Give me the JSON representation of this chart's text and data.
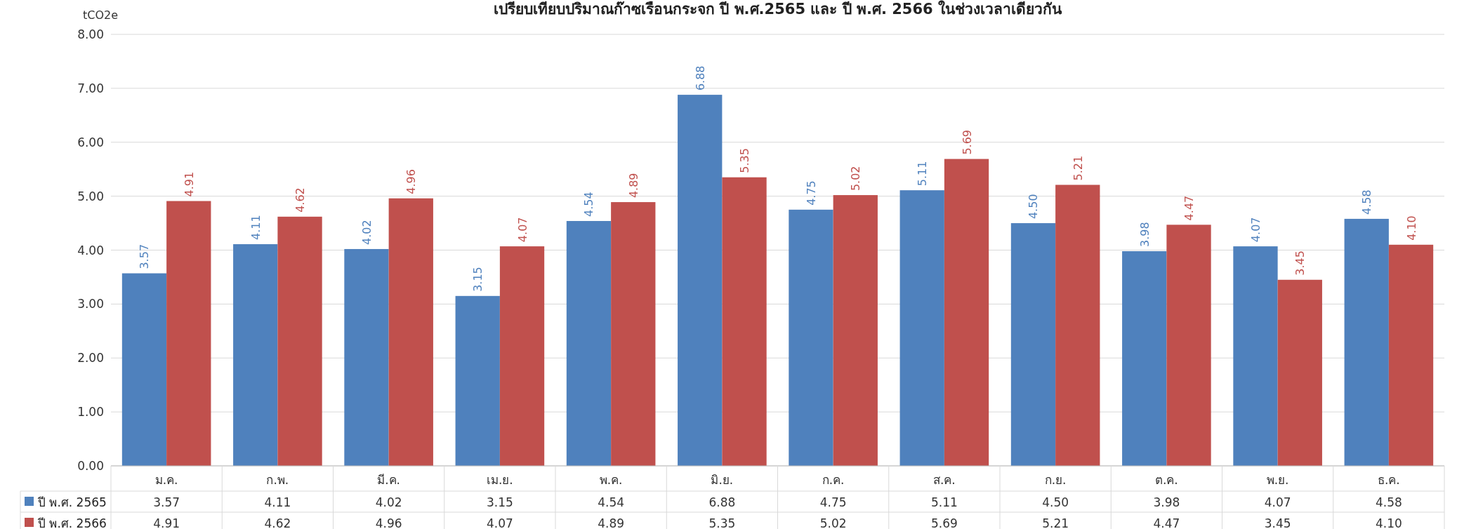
{
  "chart_data": {
    "type": "bar",
    "title": "เปรียบเทียบปริมาณก๊าซเรือนกระจก ปี พ.ศ.2565 และ ปี พ.ศ. 2566 ในช่วงเวลาเดียวกัน",
    "ylabel": "tCO2e",
    "categories": [
      "ม.ค.",
      "ก.พ.",
      "มี.ค.",
      "เม.ย.",
      "พ.ค.",
      "มิ.ย.",
      "ก.ค.",
      "ส.ค.",
      "ก.ย.",
      "ต.ค.",
      "พ.ย.",
      "ธ.ค."
    ],
    "series": [
      {
        "name": "ปี พ.ศ. 2565",
        "color": "#4f81bd",
        "values": [
          3.57,
          4.11,
          4.02,
          3.15,
          4.54,
          6.88,
          4.75,
          5.11,
          4.5,
          3.98,
          4.07,
          4.58
        ],
        "value_labels": [
          "3.57",
          "4.11",
          "4.02",
          "3.15",
          "4.54",
          "6.88",
          "4.75",
          "5.11",
          "4.50",
          "3.98",
          "4.07",
          "4.58"
        ]
      },
      {
        "name": "ปี พ.ศ. 2566",
        "color": "#c0504d",
        "values": [
          4.91,
          4.62,
          4.96,
          4.07,
          4.89,
          5.35,
          5.02,
          5.69,
          5.21,
          4.47,
          3.45,
          4.1
        ],
        "value_labels": [
          "4.91",
          "4.62",
          "4.96",
          "4.07",
          "4.89",
          "5.35",
          "5.02",
          "5.69",
          "5.21",
          "4.47",
          "3.45",
          "4.10"
        ]
      }
    ],
    "ylim": [
      0,
      8
    ],
    "yticks": [
      {
        "value": 0,
        "label": "0.00"
      },
      {
        "value": 1,
        "label": "1.00"
      },
      {
        "value": 2,
        "label": "2.00"
      },
      {
        "value": 3,
        "label": "3.00"
      },
      {
        "value": 4,
        "label": "4.00"
      },
      {
        "value": 5,
        "label": "5.00"
      },
      {
        "value": 6,
        "label": "6.00"
      },
      {
        "value": 7,
        "label": "7.00"
      },
      {
        "value": 8,
        "label": "8.00"
      }
    ],
    "grid": "y",
    "legend": "bottom"
  }
}
